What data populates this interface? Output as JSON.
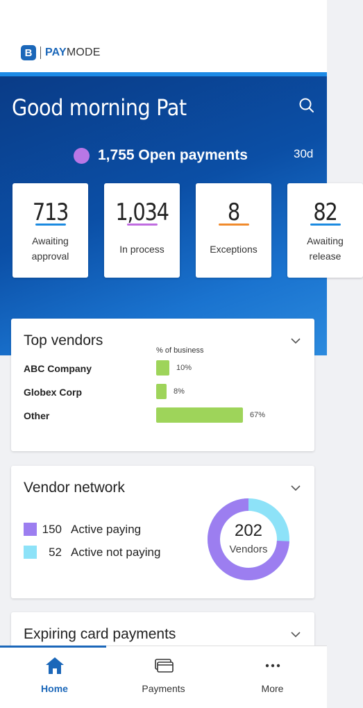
{
  "brand": {
    "logo_letter": "B",
    "name_bold": "PAY",
    "name_rest": "MODE",
    "color": "#1b67b9"
  },
  "header": {
    "greeting": "Good morning Pat",
    "search_icon": "search-icon"
  },
  "summary": {
    "open_count_label": "1,755 Open payments",
    "period": "30d",
    "dot_color": "#b877e6"
  },
  "stats": [
    {
      "value": "713",
      "label": "Awaiting approval",
      "color": "#1b8ae0"
    },
    {
      "value": "1,034",
      "label": "In process",
      "color": "#c06ce0"
    },
    {
      "value": "8",
      "label": "Exceptions",
      "color": "#f08a2c"
    },
    {
      "value": "82",
      "label": "Awaiting release",
      "color": "#1b8ae0"
    }
  ],
  "top_vendors": {
    "title": "Top vendors",
    "column_header": "% of business",
    "rows": [
      {
        "name": "ABC Company",
        "pct_label": "10%",
        "pct": 10
      },
      {
        "name": "Globex Corp",
        "pct_label": "8%",
        "pct": 8
      },
      {
        "name": "Other",
        "pct_label": "67%",
        "pct": 67
      }
    ],
    "bar_color": "#9ed45a"
  },
  "vendor_network": {
    "title": "Vendor network",
    "legend": [
      {
        "count": "150",
        "label": "Active paying",
        "color": "#9c7ef0"
      },
      {
        "count": "52",
        "label": "Active not paying",
        "color": "#8de2f8"
      }
    ],
    "total": "202",
    "total_label": "Vendors"
  },
  "expiring": {
    "title": "Expiring card payments"
  },
  "tabs": [
    {
      "label": "Home",
      "icon": "home-icon",
      "active": true
    },
    {
      "label": "Payments",
      "icon": "payments-icon",
      "active": false
    },
    {
      "label": "More",
      "icon": "more-icon",
      "active": false
    }
  ]
}
